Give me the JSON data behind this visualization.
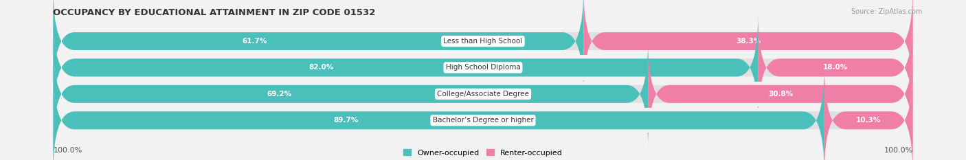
{
  "title": "OCCUPANCY BY EDUCATIONAL ATTAINMENT IN ZIP CODE 01532",
  "source": "Source: ZipAtlas.com",
  "categories": [
    "Less than High School",
    "High School Diploma",
    "College/Associate Degree",
    "Bachelor’s Degree or higher"
  ],
  "owner_pct": [
    61.7,
    82.0,
    69.2,
    89.7
  ],
  "renter_pct": [
    38.3,
    18.0,
    30.8,
    10.3
  ],
  "owner_color": "#4bbfba",
  "renter_color": "#f07fa8",
  "bg_color": "#f2f2f2",
  "bar_bg_color": "#e0e0e0",
  "title_fontsize": 9.5,
  "source_fontsize": 7,
  "cat_label_fontsize": 7.5,
  "bar_label_fontsize": 7.5,
  "legend_fontsize": 8,
  "left_axis_label": "100.0%",
  "right_axis_label": "100.0%"
}
